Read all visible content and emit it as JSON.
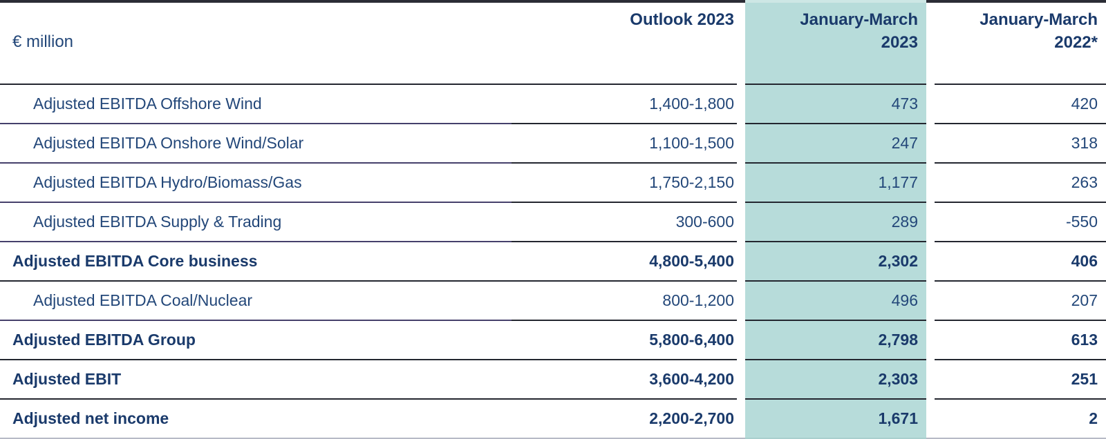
{
  "table": {
    "unit_label": "€ million",
    "colors": {
      "text_regular": "#234779",
      "text_bold": "#1a3a6b",
      "highlight_column": "#b7dcda",
      "divider": "#23262f",
      "divider_label_column": "#45406b",
      "top_border": "#2b2d36",
      "bottom_border": "#b7bac6"
    },
    "headers": [
      {
        "id": "outlook-2023",
        "lines": [
          "Outlook 2023"
        ],
        "highlight": false
      },
      {
        "id": "jan-mar-2023",
        "lines": [
          "January-March",
          "2023"
        ],
        "highlight": true
      },
      {
        "id": "jan-mar-2022",
        "lines": [
          "January-March",
          "2022*"
        ],
        "highlight": false
      }
    ],
    "rows": [
      {
        "label": "Adjusted EBITDA Offshore Wind",
        "values": [
          "1,400-1,800",
          "473",
          "420"
        ],
        "bold": false
      },
      {
        "label": "Adjusted EBITDA Onshore Wind/Solar",
        "values": [
          "1,100-1,500",
          "247",
          "318"
        ],
        "bold": false
      },
      {
        "label": "Adjusted EBITDA Hydro/Biomass/Gas",
        "values": [
          "1,750-2,150",
          "1,177",
          "263"
        ],
        "bold": false
      },
      {
        "label": "Adjusted EBITDA Supply & Trading",
        "values": [
          "300-600",
          "289",
          "-550"
        ],
        "bold": false
      },
      {
        "label": "Adjusted EBITDA Core business",
        "values": [
          "4,800-5,400",
          "2,302",
          "406"
        ],
        "bold": true
      },
      {
        "label": "Adjusted EBITDA Coal/Nuclear",
        "values": [
          "800-1,200",
          "496",
          "207"
        ],
        "bold": false
      },
      {
        "label": "Adjusted EBITDA Group",
        "values": [
          "5,800-6,400",
          "2,798",
          "613"
        ],
        "bold": true
      },
      {
        "label": "Adjusted EBIT",
        "values": [
          "3,600-4,200",
          "2,303",
          "251"
        ],
        "bold": true
      },
      {
        "label": "Adjusted net income",
        "values": [
          "2,200-2,700",
          "1,671",
          "2"
        ],
        "bold": true
      }
    ]
  }
}
